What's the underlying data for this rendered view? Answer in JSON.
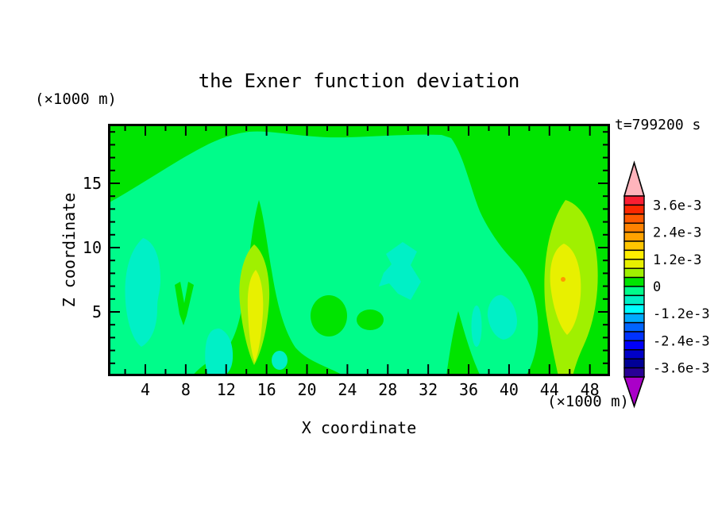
{
  "title": "the Exner function deviation",
  "time_label": "t=799200 s",
  "x_axis": {
    "label": "X coordinate",
    "unit": "(×1000 m)",
    "major_ticks": [
      4,
      8,
      12,
      16,
      20,
      24,
      28,
      32,
      36,
      40,
      44,
      48
    ],
    "minor_ticks": [
      2,
      6,
      10,
      14,
      18,
      22,
      26,
      30,
      34,
      38,
      42,
      46
    ]
  },
  "y_axis": {
    "label": "Z coordinate",
    "unit": "(×1000 m)",
    "major_ticks": [
      5,
      10,
      15
    ],
    "minor_ticks": [
      1,
      2,
      3,
      4,
      6,
      7,
      8,
      9,
      11,
      12,
      13,
      14,
      16,
      17,
      18,
      19
    ]
  },
  "colors": {
    "green": "#00e400",
    "spring": "#00fc8a",
    "turquoise": "#00f0c6",
    "yellowgreen": "#a0f000",
    "yellow": "#e8f000",
    "orange": "#ff9800",
    "axis": "#000000"
  },
  "colorbar": {
    "arrow_top": "#ffb4bc",
    "arrow_bottom": "#aa00c8",
    "cells": [
      "#fa1e32",
      "#fc2800",
      "#ff5a00",
      "#ff8200",
      "#ffa200",
      "#ffc600",
      "#ffee00",
      "#e8f000",
      "#a0f000",
      "#00e400",
      "#00fc8a",
      "#00f0c6",
      "#00ffff",
      "#00aaff",
      "#0064ff",
      "#0032ff",
      "#0000fa",
      "#0000c8",
      "#000096",
      "#280096"
    ],
    "labels": [
      "3.6e-3",
      "2.4e-3",
      "1.2e-3",
      "0",
      "-1.2e-3",
      "-2.4e-3",
      "-3.6e-3"
    ]
  },
  "chart_data": {
    "type": "heatmap",
    "subtype": "filled-contour",
    "title": "the Exner function deviation",
    "time_label": "t=799200 s",
    "xlabel": "X coordinate",
    "ylabel": "Z coordinate",
    "x_unit": "(×1000 m)",
    "y_unit": "(×1000 m)",
    "x_range": [
      0,
      50
    ],
    "z_range": [
      0,
      19.7
    ],
    "x_tick_labels": [
      4,
      8,
      12,
      16,
      20,
      24,
      28,
      32,
      36,
      40,
      44,
      48
    ],
    "z_tick_labels": [
      5,
      10,
      15
    ],
    "value_range": [
      -0.004,
      0.004
    ],
    "contour_interval": 0.0004,
    "colorbar_tick_values": [
      0.0036,
      0.0024,
      0.0012,
      0,
      -0.0012,
      -0.0024,
      -0.0036
    ],
    "legend_position": "right",
    "grid": false,
    "features": [
      {
        "desc": "background field split between 0..+4e-4 band (green) near top/right/bottom and -4e-4..0 band (spring green) over the interior",
        "value": 0
      },
      {
        "desc": "negative anomaly blob",
        "x": 3.8,
        "z": 6.7,
        "value": -0.0006
      },
      {
        "desc": "positive anomaly column with yellow core",
        "x": 14.8,
        "z": 7.5,
        "value": 0.0016
      },
      {
        "desc": "negative angular patch",
        "x": 29.1,
        "z": 8.2,
        "value": -0.0006
      },
      {
        "desc": "negative patch",
        "x": 39.3,
        "z": 4.6,
        "value": -0.0006
      },
      {
        "desc": "strongest positive anomaly with orange speck",
        "x": 45.4,
        "z": 7.7,
        "value": 0.0022
      },
      {
        "desc": "small negative patches near surface",
        "x": 21.5,
        "z": 1.5,
        "value": -0.0006
      }
    ]
  }
}
